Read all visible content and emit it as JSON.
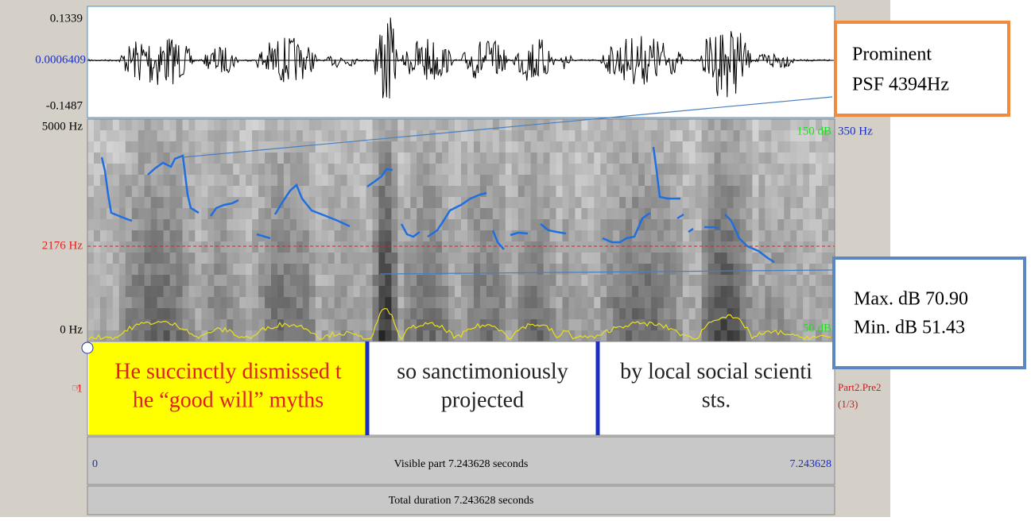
{
  "waveform": {
    "max_label": "0.1339",
    "mid_label": "0.0006409",
    "min_label": "-0.1487"
  },
  "spectrogram": {
    "top_label": "5000 Hz",
    "cursor_label": "2176 Hz",
    "bottom_label": "0 Hz",
    "pitch_top": "350 Hz",
    "intensity_top": "150 dB",
    "intensity_bottom": "50 dB"
  },
  "tier": {
    "number": "1",
    "name": "Part2.Pre2",
    "count": "(1/3)",
    "intervals": [
      [
        "He succinctly dismissed t",
        "he “good will” myths"
      ],
      [
        "so sanctimoniously",
        "projected"
      ],
      [
        "by local social scienti",
        "sts."
      ]
    ]
  },
  "visible": {
    "start": "0",
    "label": "Visible part 7.243628 seconds",
    "end": "7.243628"
  },
  "total": "Total duration 7.243628 seconds",
  "callouts": [
    [
      "Prominent",
      "PSF 4394Hz"
    ],
    [
      "Max. dB 70.90",
      "Min. dB 51.43"
    ]
  ]
}
